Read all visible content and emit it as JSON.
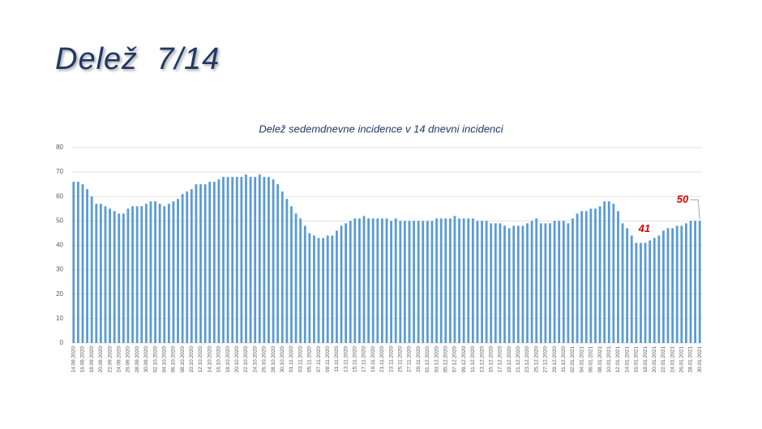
{
  "slide": {
    "title": "Delež  7/14"
  },
  "chart_data": {
    "type": "bar",
    "title": "Delež sedemdnevne incidence v 14 dnevni incidenci",
    "color": "#5b9bd5",
    "grid": true,
    "ylim": [
      0,
      80
    ],
    "yticks": [
      0,
      10,
      20,
      30,
      40,
      50,
      60,
      70,
      80
    ],
    "categories": [
      "14.09.2020",
      null,
      "16.09.2020",
      null,
      "18.09.2020",
      null,
      "20.09.2020",
      null,
      "22.09.2020",
      null,
      "24.09.2020",
      null,
      "26.09.2020",
      null,
      "28.09.2020",
      null,
      "30.09.2020",
      null,
      "02.10.2020",
      null,
      "04.10.2020",
      null,
      "06.10.2020",
      null,
      "08.10.2020",
      null,
      "10.10.2020",
      null,
      "12.10.2020",
      null,
      "14.10.2020",
      null,
      "16.10.2020",
      null,
      "18.10.2020",
      null,
      "20.10.2020",
      null,
      "22.10.2020",
      null,
      "24.10.2020",
      null,
      "26.10.2020",
      null,
      "28.10.2020",
      null,
      "30.10.2020",
      null,
      "01.11.2020",
      null,
      "03.11.2020",
      null,
      "05.11.2020",
      null,
      "07.11.2020",
      null,
      "09.11.2020",
      null,
      "11.11.2020",
      null,
      "13.11.2020",
      null,
      "15.11.2020",
      null,
      "17.11.2020",
      null,
      "19.11.2020",
      null,
      "21.11.2020",
      null,
      "23.11.2020",
      null,
      "25.11.2020",
      null,
      "27.11.2020",
      null,
      "29.11.2020",
      null,
      "01.12.2020",
      null,
      "03.12.2020",
      null,
      "05.12.2020",
      null,
      "07.12.2020",
      null,
      "09.12.2020",
      null,
      "11.12.2020",
      null,
      "13.12.2020",
      null,
      "15.12.2020",
      null,
      "17.12.2020",
      null,
      "19.12.2020",
      null,
      "21.12.2020",
      null,
      "23.12.2020",
      null,
      "25.12.2020",
      null,
      "27.12.2020",
      null,
      "29.12.2020",
      null,
      "31.12.2020",
      null,
      "02.01.2021",
      null,
      "04.01.2021",
      null,
      "06.01.2021",
      null,
      "08.01.2021",
      null,
      "10.01.2021",
      null,
      "12.01.2021",
      null,
      "14.01.2021",
      null,
      "16.01.2021",
      null,
      "18.01.2021",
      null,
      "20.01.2021",
      null,
      "22.01.2021",
      null,
      "24.01.2021",
      null,
      "26.01.2021",
      null,
      "28.01.2021",
      null,
      "30.01.2021"
    ],
    "values": [
      66,
      66,
      65,
      63,
      60,
      57,
      57,
      56,
      55,
      54,
      53,
      53,
      55,
      56,
      56,
      56,
      57,
      58,
      58,
      57,
      56,
      57,
      58,
      59,
      61,
      62,
      63,
      65,
      65,
      65,
      66,
      66,
      67,
      68,
      68,
      68,
      68,
      68,
      69,
      68,
      68,
      69,
      68,
      68,
      67,
      65,
      62,
      59,
      56,
      53,
      51,
      48,
      45,
      44,
      43,
      43,
      44,
      44,
      46,
      48,
      49,
      50,
      51,
      51,
      52,
      51,
      51,
      51,
      51,
      51,
      50,
      51,
      50,
      50,
      50,
      50,
      50,
      50,
      50,
      50,
      51,
      51,
      51,
      51,
      52,
      51,
      51,
      51,
      51,
      50,
      50,
      50,
      49,
      49,
      49,
      48,
      47,
      48,
      48,
      48,
      49,
      50,
      51,
      49,
      49,
      49,
      50,
      50,
      50,
      49,
      51,
      53,
      54,
      54,
      55,
      55,
      56,
      58,
      58,
      57,
      54,
      49,
      47,
      44,
      41,
      41,
      41,
      42,
      43,
      44,
      46,
      47,
      47,
      48,
      48,
      49,
      50,
      50,
      50
    ],
    "value_labels": [
      null,
      null,
      null,
      null,
      null,
      null,
      null,
      null,
      null,
      null,
      null,
      null,
      null,
      null,
      null,
      null,
      null,
      null,
      null,
      null,
      null,
      null,
      null,
      null,
      null,
      null,
      null,
      null,
      null,
      null,
      null,
      null,
      null,
      null,
      null,
      null,
      null,
      null,
      null,
      null,
      null,
      null,
      null,
      null,
      null,
      null,
      null,
      null,
      null,
      null,
      null,
      null,
      null,
      null,
      null,
      null,
      null,
      null,
      null,
      null,
      null,
      null,
      null,
      null,
      null,
      null,
      null,
      null,
      null,
      null,
      null,
      null,
      null,
      null,
      null,
      null,
      null,
      null,
      null,
      null,
      null,
      null,
      null,
      null,
      null,
      null,
      null,
      null,
      null,
      null,
      null,
      null,
      null,
      null,
      null,
      null,
      null,
      null,
      null,
      null,
      null,
      null,
      null,
      null,
      null,
      null,
      null,
      null,
      null,
      null,
      null,
      null,
      null,
      null,
      null,
      null,
      null,
      null,
      null,
      null,
      null,
      null,
      null,
      null,
      "41",
      null,
      null,
      null,
      null,
      null,
      null,
      null,
      null,
      null,
      null,
      null,
      null,
      null,
      "50"
    ]
  }
}
